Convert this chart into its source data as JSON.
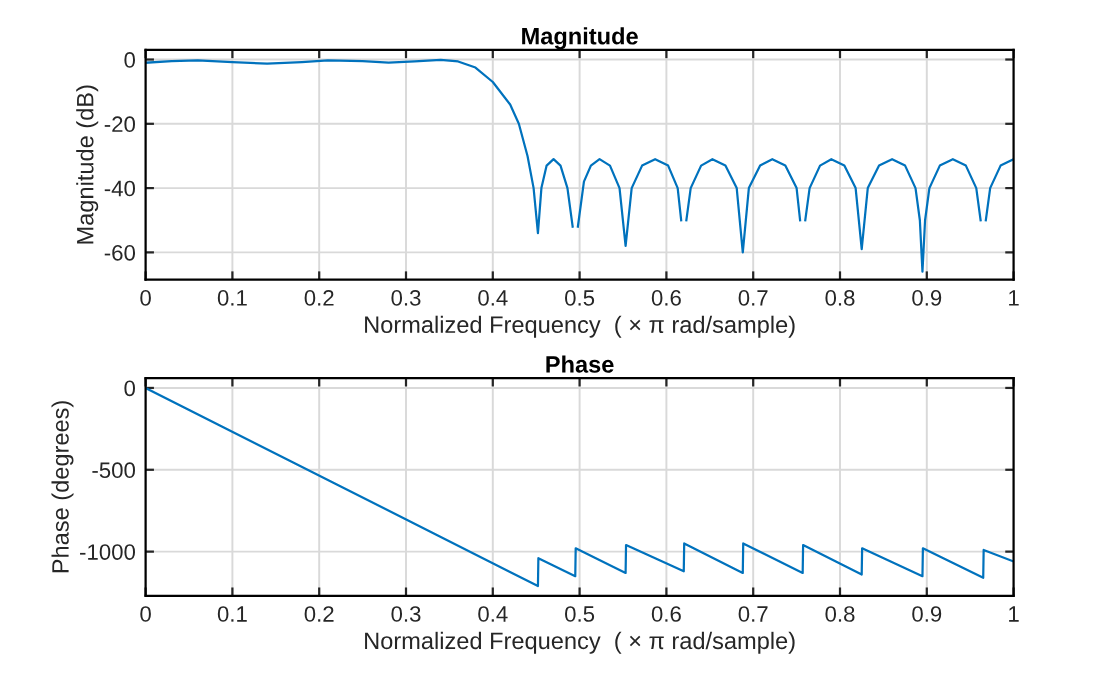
{
  "chart_data": [
    {
      "type": "line",
      "title": "Magnitude",
      "xlabel": "Normalized Frequency  ( × π rad/sample)",
      "ylabel": "Magnitude (dB)",
      "x": [
        0,
        0.03,
        0.06,
        0.1,
        0.14,
        0.18,
        0.21,
        0.25,
        0.28,
        0.31,
        0.34,
        0.36,
        0.38,
        0.4,
        0.42,
        0.43,
        0.44,
        0.447,
        0.452,
        0.456,
        0.462,
        0.47,
        0.478,
        0.486,
        0.492,
        0.495,
        0.498,
        0.505,
        0.513,
        0.523,
        0.535,
        0.546,
        0.553,
        0.56,
        0.572,
        0.587,
        0.602,
        0.613,
        0.617,
        0.62,
        0.623,
        0.628,
        0.64,
        0.653,
        0.668,
        0.681,
        0.688,
        0.695,
        0.708,
        0.722,
        0.737,
        0.75,
        0.754,
        0.757,
        0.76,
        0.765,
        0.777,
        0.79,
        0.805,
        0.818,
        0.825,
        0.832,
        0.845,
        0.86,
        0.875,
        0.887,
        0.892,
        0.895,
        0.898,
        0.903,
        0.915,
        0.93,
        0.945,
        0.957,
        0.962,
        0.965,
        0.968,
        0.973,
        0.985,
        1.0
      ],
      "series": [
        {
          "color": "#0072bd",
          "values": [
            -1,
            -0.5,
            -0.3,
            -0.8,
            -1.3,
            -0.8,
            -0.3,
            -0.5,
            -1.0,
            -0.6,
            -0.1,
            -0.6,
            -2.5,
            -7,
            -14,
            -20,
            -30,
            -40,
            -54,
            -40,
            -33,
            -31,
            -33,
            -40,
            -52,
            null,
            -52,
            -38,
            -33,
            -31,
            -33,
            -40,
            -58,
            -40,
            -33,
            -31,
            -33,
            -40,
            -50,
            null,
            -50,
            -40,
            -33,
            -31,
            -33,
            -40,
            -60,
            -40,
            -33,
            -31,
            -33,
            -40,
            -50,
            null,
            -50,
            -40,
            -33,
            -31,
            -33,
            -40,
            -59,
            -40,
            -33,
            -31,
            -33,
            -40,
            -50,
            -66,
            -50,
            -40,
            -33,
            -31,
            -33,
            -40,
            -50,
            null,
            -50,
            -40,
            -33,
            -31
          ]
        }
      ],
      "xlim": [
        0,
        1
      ],
      "xticks": [
        0,
        0.1,
        0.2,
        0.3,
        0.4,
        0.5,
        0.6,
        0.7,
        0.8,
        0.9,
        1
      ],
      "ylim": [
        -68.5,
        3
      ],
      "yticks": [
        0,
        -20,
        -40,
        -60
      ],
      "grid": true
    },
    {
      "type": "line",
      "title": "Phase",
      "xlabel": "Normalized Frequency  ( × π rad/sample)",
      "ylabel": "Phase (degrees)",
      "x": [
        0,
        0.452,
        0.4525,
        0.495,
        0.4955,
        0.553,
        0.5535,
        0.62,
        0.6205,
        0.688,
        0.6885,
        0.757,
        0.7575,
        0.825,
        0.8255,
        0.895,
        0.8955,
        0.965,
        0.9655,
        1.0
      ],
      "series": [
        {
          "color": "#0072bd",
          "values": [
            0,
            -1210,
            -1040,
            -1150,
            -980,
            -1130,
            -960,
            -1120,
            -950,
            -1130,
            -950,
            -1130,
            -960,
            -1140,
            -980,
            -1150,
            -980,
            -1160,
            -990,
            -1060
          ]
        }
      ],
      "xlim": [
        0,
        1
      ],
      "xticks": [
        0,
        0.1,
        0.2,
        0.3,
        0.4,
        0.5,
        0.6,
        0.7,
        0.8,
        0.9,
        1
      ],
      "ylim": [
        -1270,
        60
      ],
      "yticks": [
        0,
        -500,
        -1000
      ],
      "grid": true
    }
  ]
}
